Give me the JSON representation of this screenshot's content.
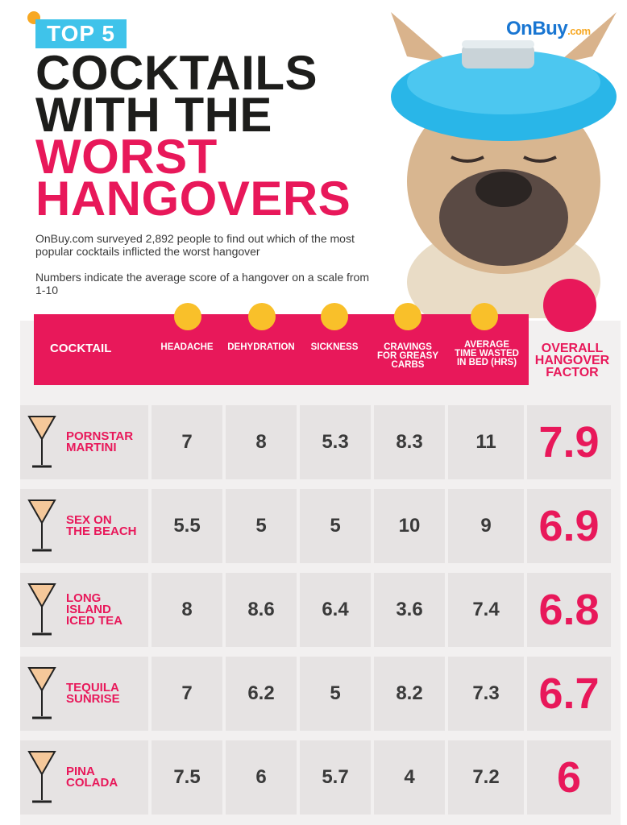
{
  "badge": "TOP 5",
  "title": {
    "line1": "COCKTAILS",
    "line2": "WITH THE",
    "line3": "WORST",
    "line4": "HANGOVERS"
  },
  "intro": {
    "p1": "OnBuy.com surveyed 2,892 people to find out which of the most popular cocktails inflicted the worst hangover",
    "p2": "Numbers indicate the average score of a hangover on a scale from 1-10"
  },
  "logo": {
    "main": "OnBuy",
    "suffix": ".com"
  },
  "colors": {
    "accent": "#e8185a",
    "badge": "#3fc3ea",
    "emoji": "#f9c02a"
  },
  "chart_data": {
    "type": "table",
    "columns": [
      "COCKTAIL",
      "HEADACHE",
      "DEHYDRATION",
      "SICKNESS",
      "CRAVINGS FOR GREASY CARBS",
      "AVERAGE TIME WASTED IN BED (HRS)",
      "OVERALL HANGOVER FACTOR"
    ],
    "rows": [
      {
        "cocktail": "PORNSTAR MARTINI",
        "headache": "7",
        "dehydration": "8",
        "sickness": "5.3",
        "cravings": "8.3",
        "bed": "11",
        "overall": "7.9"
      },
      {
        "cocktail": "SEX ON THE BEACH",
        "headache": "5.5",
        "dehydration": "5",
        "sickness": "5",
        "cravings": "10",
        "bed": "9",
        "overall": "6.9"
      },
      {
        "cocktail": "LONG ISLAND ICED TEA",
        "headache": "8",
        "dehydration": "8.6",
        "sickness": "6.4",
        "cravings": "3.6",
        "bed": "7.4",
        "overall": "6.8"
      },
      {
        "cocktail": "TEQUILA SUNRISE",
        "headache": "7",
        "dehydration": "6.2",
        "sickness": "5",
        "cravings": "8.2",
        "bed": "7.3",
        "overall": "6.7"
      },
      {
        "cocktail": "PINA COLADA",
        "headache": "7.5",
        "dehydration": "6",
        "sickness": "5.7",
        "cravings": "4",
        "bed": "7.2",
        "overall": "6"
      }
    ]
  },
  "headers": {
    "cocktail": "COCKTAIL",
    "headache": "HEADACHE",
    "dehydration": "DEHYDRATION",
    "sickness": "SICKNESS",
    "cravings": [
      "CRAVINGS",
      "FOR GREASY",
      "CARBS"
    ],
    "bed": [
      "AVERAGE",
      "TIME WASTED",
      "IN BED (HRS)"
    ],
    "overall": [
      "OVERALL",
      "HANGOVER",
      "FACTOR"
    ]
  },
  "names": [
    [
      "PORNSTAR",
      "MARTINI"
    ],
    [
      "SEX ON",
      "THE BEACH"
    ],
    [
      "LONG",
      "ISLAND",
      "ICED TEA"
    ],
    [
      "TEQUILA",
      "SUNRISE"
    ],
    [
      "PINA",
      "COLADA"
    ]
  ]
}
